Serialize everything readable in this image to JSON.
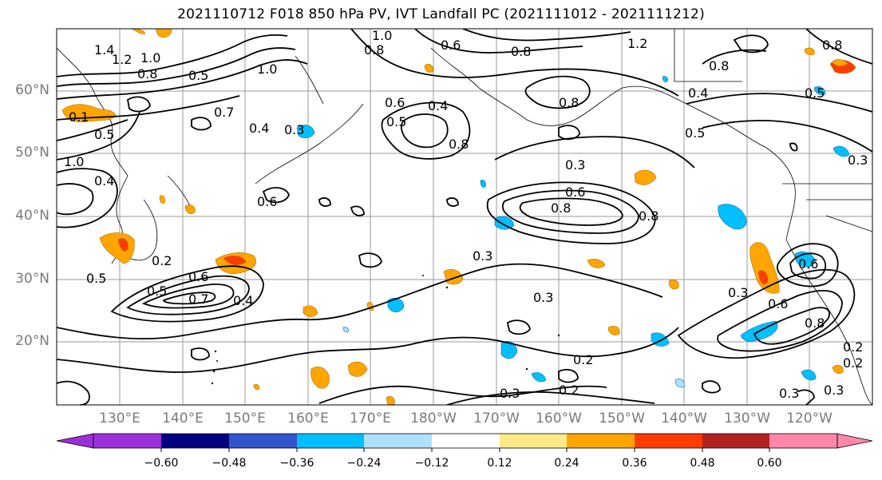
{
  "title": "2021110712 F018 850 hPa PV, IVT Landfall PC (2021111012 - 2021111212)",
  "lat_labels": [
    "60°N",
    "50°N",
    "40°N",
    "30°N",
    "20°N"
  ],
  "lon_labels": [
    "130°E",
    "140°E",
    "150°E",
    "160°E",
    "170°E",
    "180°W",
    "170°W",
    "160°W",
    "150°W",
    "140°W",
    "130°W",
    "120°W"
  ],
  "colorbar": {
    "ticks": [
      "−0.60",
      "−0.48",
      "−0.36",
      "−0.24",
      "−0.12",
      "0.12",
      "0.24",
      "0.36",
      "0.48",
      "0.60"
    ],
    "colors": [
      "#9b30d9",
      "#000080",
      "#3355cc",
      "#00bfff",
      "#b0e0ff",
      "#ffffff",
      "#ffea8a",
      "#ffa500",
      "#ff3c00",
      "#b22222",
      "#ff88aa"
    ]
  },
  "contour_labels": [
    "1.4",
    "1.2",
    "1.0",
    "0.8",
    "1.0",
    "1.0",
    "0.8",
    "0.6",
    "0.8",
    "1.2",
    "0.8",
    "0.8",
    "1.0",
    "0.7",
    "0.5",
    "0.4",
    "0.3",
    "0.6",
    "0.4",
    "0.8",
    "0.5",
    "0.5",
    "0.3",
    "0.6",
    "0.8",
    "0.8",
    "0.6",
    "0.3",
    "0.2",
    "0.5",
    "0.6",
    "0.7",
    "0.5",
    "0.4",
    "0.3",
    "0.3",
    "0.6",
    "0.3",
    "0.8",
    "0.6",
    "0.2",
    "0.2",
    "0.2",
    "0.3",
    "0.3",
    "0.2",
    "0.1",
    "0.5",
    "0.3",
    "0.4",
    "0.5",
    "0.8",
    "0.4"
  ]
}
